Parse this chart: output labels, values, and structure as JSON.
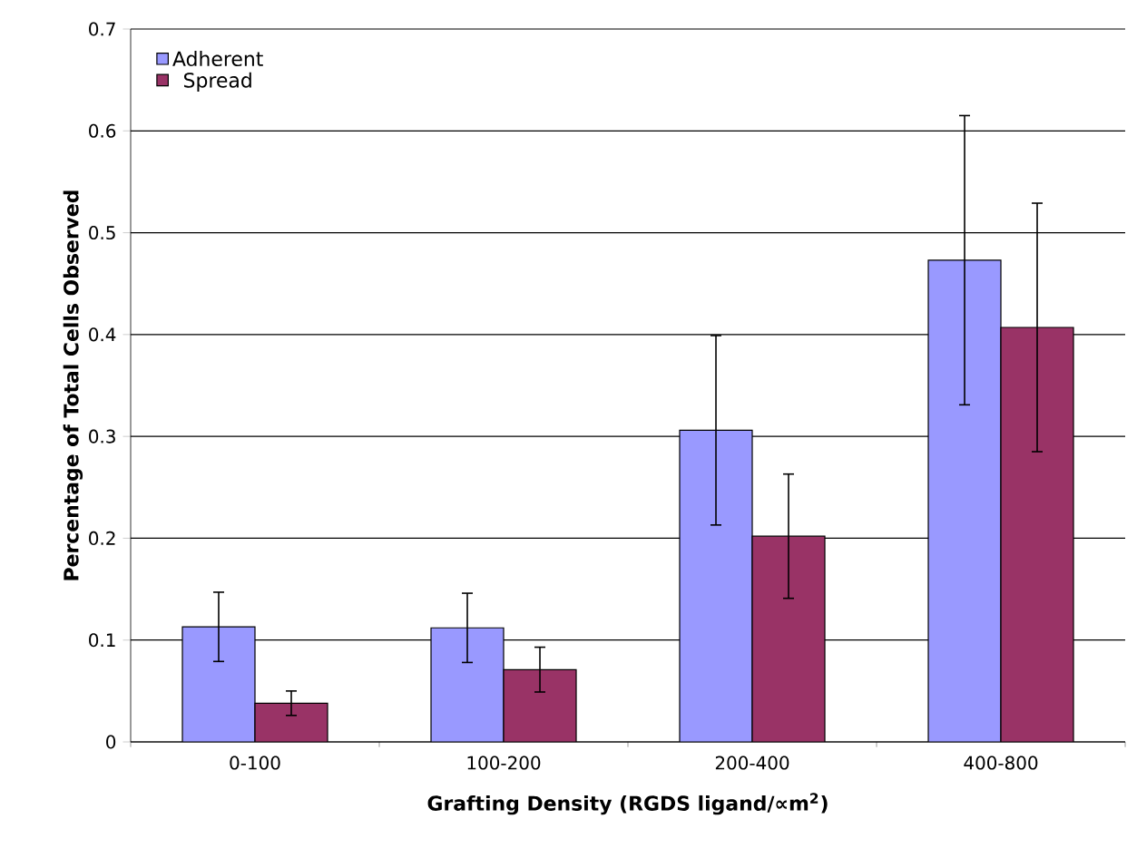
{
  "chart_data": {
    "type": "bar",
    "xlabel": "Grafting Density (RGDS ligand/∝m$^{2}$)",
    "ylabel": "Percentage of Total Cells Observed",
    "categories": [
      "0-100",
      "100-200",
      "200-400",
      "400-800"
    ],
    "series": [
      {
        "name": "Adherent",
        "color": "#9999ff",
        "values": [
          0.113,
          0.112,
          0.306,
          0.473
        ],
        "errors": [
          0.034,
          0.034,
          0.093,
          0.142
        ]
      },
      {
        "name": "Spread",
        "color": "#993366",
        "values": [
          0.038,
          0.071,
          0.202,
          0.407
        ],
        "errors": [
          0.012,
          0.022,
          0.061,
          0.122
        ]
      }
    ],
    "ylim": [
      0,
      0.7
    ],
    "yticks": [
      0,
      0.1,
      0.2,
      0.3,
      0.4,
      0.5,
      0.6,
      0.7
    ],
    "grid": "y",
    "legend": "top left"
  }
}
